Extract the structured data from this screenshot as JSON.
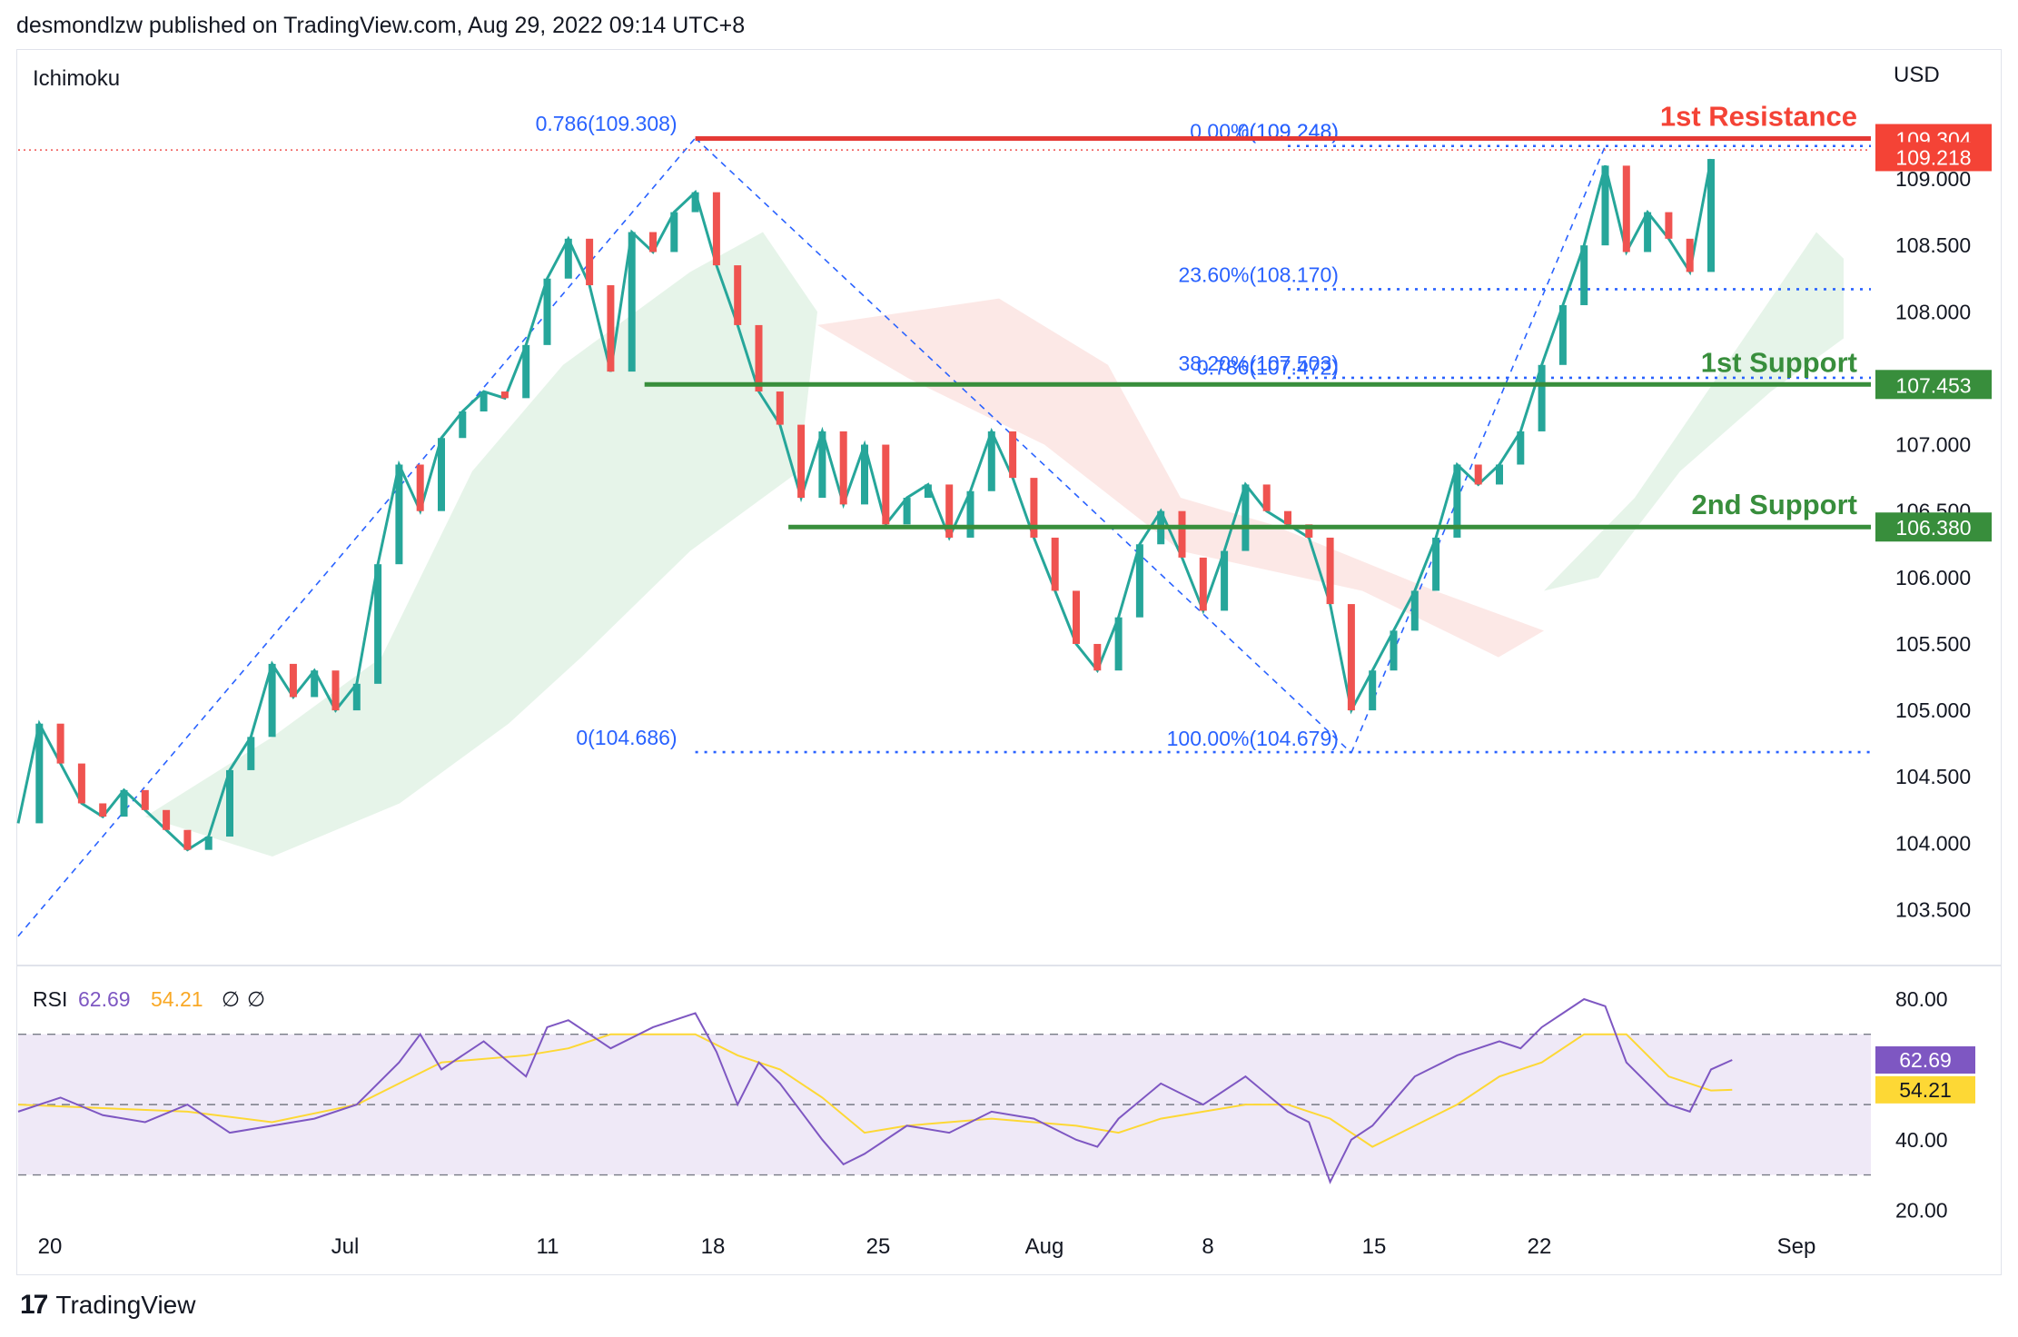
{
  "header": {
    "published": "desmondlzw published on TradingView.com, Aug 29, 2022 09:14 UTC+8"
  },
  "footer": {
    "brand": "TradingView",
    "logo_glyph": "17"
  },
  "chart_data": [
    {
      "type": "candlestick",
      "indicator_label": "Ichimoku",
      "currency": "USD",
      "y_tick_labels": [
        "109.000",
        "108.500",
        "108.000",
        "107.000",
        "106.500",
        "106.000",
        "105.500",
        "105.000",
        "104.500",
        "104.000",
        "103.500"
      ],
      "y_ticks": [
        109.0,
        108.5,
        108.0,
        107.0,
        106.5,
        106.0,
        105.5,
        105.0,
        104.5,
        104.0,
        103.5
      ],
      "ylim": [
        103.1,
        109.8
      ],
      "x_tick_labels": [
        "20",
        "Jul",
        "11",
        "18",
        "25",
        "Aug",
        "8",
        "15",
        "22",
        "Sep"
      ],
      "close_path": [
        [
          0,
          104.15
        ],
        [
          5,
          104.9
        ],
        [
          10,
          104.6
        ],
        [
          15,
          104.3
        ],
        [
          20,
          104.2
        ],
        [
          25,
          104.4
        ],
        [
          30,
          104.25
        ],
        [
          35,
          104.1
        ],
        [
          40,
          103.95
        ],
        [
          45,
          104.05
        ],
        [
          50,
          104.55
        ],
        [
          55,
          104.8
        ],
        [
          60,
          105.35
        ],
        [
          65,
          105.1
        ],
        [
          70,
          105.3
        ],
        [
          75,
          105.0
        ],
        [
          80,
          105.2
        ],
        [
          85,
          106.1
        ],
        [
          90,
          106.85
        ],
        [
          95,
          106.5
        ],
        [
          100,
          107.05
        ],
        [
          105,
          107.25
        ],
        [
          110,
          107.4
        ],
        [
          115,
          107.35
        ],
        [
          120,
          107.75
        ],
        [
          125,
          108.25
        ],
        [
          130,
          108.55
        ],
        [
          135,
          108.2
        ],
        [
          140,
          107.55
        ],
        [
          145,
          108.6
        ],
        [
          150,
          108.45
        ],
        [
          155,
          108.75
        ],
        [
          160,
          108.9
        ],
        [
          165,
          108.35
        ],
        [
          170,
          107.9
        ],
        [
          175,
          107.4
        ],
        [
          180,
          107.15
        ],
        [
          185,
          106.6
        ],
        [
          190,
          107.1
        ],
        [
          195,
          106.55
        ],
        [
          200,
          107.0
        ],
        [
          205,
          106.4
        ],
        [
          210,
          106.6
        ],
        [
          215,
          106.7
        ],
        [
          220,
          106.3
        ],
        [
          225,
          106.65
        ],
        [
          230,
          107.1
        ],
        [
          235,
          106.75
        ],
        [
          240,
          106.3
        ],
        [
          245,
          105.9
        ],
        [
          250,
          105.5
        ],
        [
          255,
          105.3
        ],
        [
          260,
          105.7
        ],
        [
          265,
          106.25
        ],
        [
          270,
          106.5
        ],
        [
          275,
          106.15
        ],
        [
          280,
          105.75
        ],
        [
          285,
          106.2
        ],
        [
          290,
          106.7
        ],
        [
          295,
          106.5
        ],
        [
          300,
          106.4
        ],
        [
          305,
          106.3
        ],
        [
          310,
          105.8
        ],
        [
          315,
          105.0
        ],
        [
          320,
          105.3
        ],
        [
          325,
          105.6
        ],
        [
          330,
          105.9
        ],
        [
          335,
          106.3
        ],
        [
          340,
          106.85
        ],
        [
          345,
          106.7
        ],
        [
          350,
          106.85
        ],
        [
          355,
          107.1
        ],
        [
          360,
          107.6
        ],
        [
          365,
          108.05
        ],
        [
          370,
          108.5
        ],
        [
          375,
          109.1
        ],
        [
          380,
          108.45
        ],
        [
          385,
          108.75
        ],
        [
          390,
          108.55
        ],
        [
          395,
          108.3
        ],
        [
          400,
          109.15
        ]
      ],
      "resistance_1": {
        "label": "1st Resistance",
        "value": 109.304,
        "value_label": "109.304"
      },
      "current_price": {
        "value": 109.218,
        "value_label": "109.218"
      },
      "support_1": {
        "label": "1st Support",
        "value": 107.453,
        "value_label": "107.453"
      },
      "support_2": {
        "label": "2nd Support",
        "value": 106.38,
        "value_label": "106.380"
      },
      "fib_labels": [
        {
          "text": "0.786(109.308)",
          "value": 109.308,
          "x": 84,
          "anchor": "end"
        },
        {
          "text": "0(104.686)",
          "value": 104.686,
          "x": 84,
          "anchor": "end"
        },
        {
          "text": "0.00%(109.248)",
          "value": 109.248,
          "x": 292,
          "anchor": "end"
        },
        {
          "text": "0(109.248)",
          "value": 109.248,
          "x": 300,
          "anchor": "end"
        },
        {
          "text": "23.60%(108.170)",
          "value": 108.17,
          "x": 300,
          "anchor": "end"
        },
        {
          "text": "38.20%(107.503)",
          "value": 107.503,
          "x": 300,
          "anchor": "end"
        },
        {
          "text": "0.786(107.472)",
          "value": 107.472,
          "x": 300,
          "anchor": "end"
        },
        {
          "text": "100.00%(104.679)",
          "value": 104.679,
          "x": 300,
          "anchor": "end"
        }
      ]
    },
    {
      "type": "line",
      "indicator_label": "RSI",
      "rsi_value": "62.69",
      "ma_value": "54.21",
      "na_1": "∅",
      "na_2": "∅",
      "colors": {
        "rsi": "#7e57c2",
        "ma": "#fdd835"
      },
      "y_tick_labels": [
        "80.00",
        "40.00",
        "20.00"
      ],
      "y_ticks": [
        80,
        40,
        20
      ],
      "bands": {
        "upper": 70,
        "middle": 50,
        "lower": 30
      },
      "rsi_path": [
        [
          0,
          48
        ],
        [
          10,
          52
        ],
        [
          20,
          47
        ],
        [
          30,
          45
        ],
        [
          40,
          50
        ],
        [
          50,
          42
        ],
        [
          60,
          44
        ],
        [
          70,
          46
        ],
        [
          80,
          50
        ],
        [
          90,
          62
        ],
        [
          95,
          70
        ],
        [
          100,
          60
        ],
        [
          110,
          68
        ],
        [
          120,
          58
        ],
        [
          125,
          72
        ],
        [
          130,
          74
        ],
        [
          140,
          66
        ],
        [
          150,
          72
        ],
        [
          160,
          76
        ],
        [
          165,
          65
        ],
        [
          170,
          50
        ],
        [
          175,
          62
        ],
        [
          180,
          56
        ],
        [
          190,
          40
        ],
        [
          195,
          33
        ],
        [
          200,
          36
        ],
        [
          210,
          44
        ],
        [
          220,
          42
        ],
        [
          230,
          48
        ],
        [
          240,
          46
        ],
        [
          250,
          40
        ],
        [
          255,
          38
        ],
        [
          260,
          46
        ],
        [
          270,
          56
        ],
        [
          280,
          50
        ],
        [
          290,
          58
        ],
        [
          300,
          48
        ],
        [
          305,
          45
        ],
        [
          310,
          28
        ],
        [
          315,
          40
        ],
        [
          320,
          44
        ],
        [
          330,
          58
        ],
        [
          340,
          64
        ],
        [
          350,
          68
        ],
        [
          355,
          66
        ],
        [
          360,
          72
        ],
        [
          365,
          76
        ],
        [
          370,
          80
        ],
        [
          375,
          78
        ],
        [
          380,
          62
        ],
        [
          385,
          56
        ],
        [
          390,
          50
        ],
        [
          395,
          48
        ],
        [
          400,
          60
        ],
        [
          405,
          62.69
        ]
      ],
      "ma_path": [
        [
          0,
          50
        ],
        [
          20,
          49
        ],
        [
          40,
          48
        ],
        [
          60,
          45
        ],
        [
          80,
          50
        ],
        [
          90,
          56
        ],
        [
          100,
          62
        ],
        [
          120,
          64
        ],
        [
          130,
          66
        ],
        [
          140,
          70
        ],
        [
          150,
          70
        ],
        [
          160,
          70
        ],
        [
          170,
          64
        ],
        [
          180,
          60
        ],
        [
          190,
          52
        ],
        [
          200,
          42
        ],
        [
          210,
          44
        ],
        [
          230,
          46
        ],
        [
          250,
          44
        ],
        [
          260,
          42
        ],
        [
          270,
          46
        ],
        [
          290,
          50
        ],
        [
          300,
          50
        ],
        [
          310,
          46
        ],
        [
          320,
          38
        ],
        [
          330,
          44
        ],
        [
          340,
          50
        ],
        [
          350,
          58
        ],
        [
          360,
          62
        ],
        [
          370,
          70
        ],
        [
          380,
          70
        ],
        [
          390,
          58
        ],
        [
          400,
          54
        ],
        [
          405,
          54.21
        ]
      ]
    }
  ]
}
